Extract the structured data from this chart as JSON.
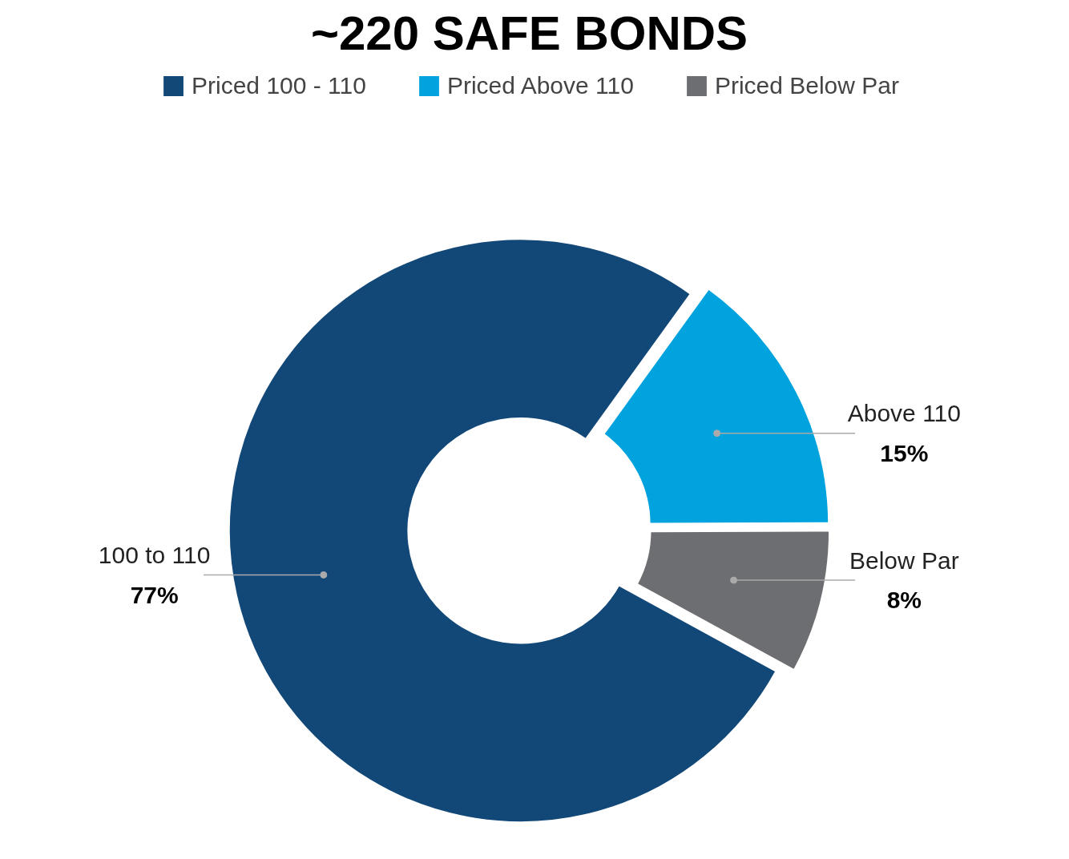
{
  "chart_data": {
    "type": "donut",
    "title": "~220 SAFE BONDS",
    "categories": [
      "Priced 100 - 110",
      "Priced Above 110",
      "Priced Below Par"
    ],
    "values": [
      77,
      15,
      8
    ],
    "colors": [
      "#124878",
      "#00a3dd",
      "#6d6e72"
    ],
    "value_labels": [
      "77%",
      "15%",
      "8%"
    ],
    "annotations": [
      "100 to 110",
      "Above 110",
      "Below Par"
    ],
    "legend": "top"
  }
}
